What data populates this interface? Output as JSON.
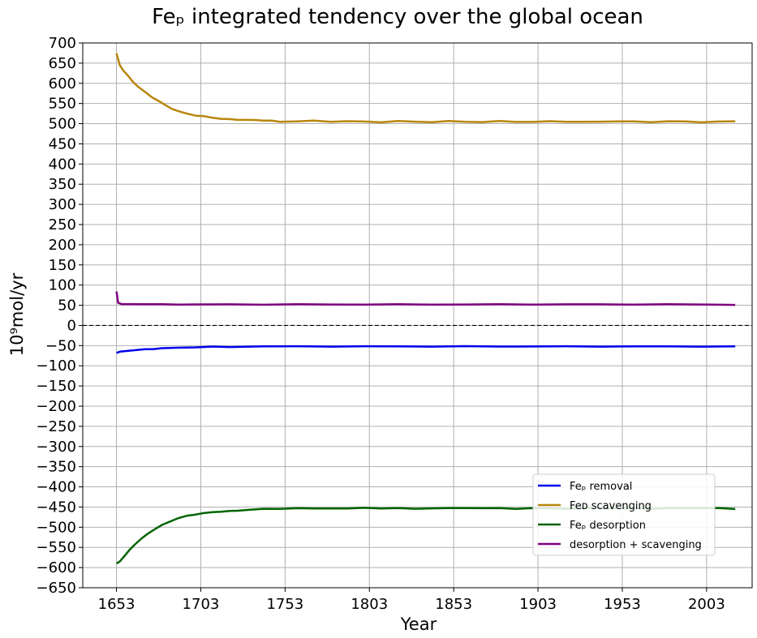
{
  "chart_data": {
    "type": "line",
    "title": "Feₚ integrated tendency over the global ocean",
    "xlabel": "Year",
    "ylabel": "10⁹mol/yr",
    "xlim": [
      1633,
      2030
    ],
    "ylim": [
      -650,
      700
    ],
    "xticks": [
      1653,
      1703,
      1753,
      1803,
      1853,
      1903,
      1953,
      2003
    ],
    "yticks": [
      700,
      650,
      600,
      550,
      500,
      450,
      400,
      350,
      300,
      250,
      200,
      150,
      100,
      50,
      0,
      -50,
      -100,
      -150,
      -200,
      -250,
      -300,
      -350,
      -400,
      -450,
      -500,
      -550,
      -600,
      -650
    ],
    "ytick_labels": [
      "700",
      "650",
      "600",
      "550",
      "500",
      "450",
      "400",
      "350",
      "300",
      "250",
      "200",
      "150",
      "100",
      "50",
      "0",
      "−50",
      "−100",
      "−150",
      "−200",
      "−250",
      "−300",
      "−350",
      "−400",
      "−450",
      "−500",
      "−550",
      "−600",
      "−650"
    ],
    "grid": true,
    "zero_line": {
      "y": 0,
      "style": "dashed",
      "color": "#000000"
    },
    "legend_position": "lower-right",
    "series": [
      {
        "name": "Feₚ removal",
        "color": "#0000ee",
        "x": [
          1653,
          1655,
          1660,
          1665,
          1670,
          1675,
          1680,
          1690,
          1700,
          1710,
          1720,
          1740,
          1760,
          1780,
          1800,
          1820,
          1840,
          1860,
          1880,
          1900,
          1920,
          1940,
          1960,
          1980,
          2000,
          2020
        ],
        "y": [
          -68,
          -65,
          -63,
          -61,
          -59,
          -58,
          -57,
          -55,
          -54,
          -53,
          -53,
          -52,
          -52,
          -52,
          -52,
          -52,
          -52,
          -52,
          -52,
          -52,
          -52,
          -52,
          -52,
          -52,
          -52,
          -52
        ]
      },
      {
        "name": "Feᴅ scavenging",
        "color": "#b8860b",
        "x": [
          1653,
          1655,
          1657,
          1660,
          1663,
          1666,
          1670,
          1674,
          1678,
          1682,
          1686,
          1690,
          1695,
          1700,
          1705,
          1710,
          1715,
          1720,
          1725,
          1730,
          1735,
          1740,
          1745,
          1750,
          1760,
          1770,
          1780,
          1790,
          1800,
          1810,
          1820,
          1830,
          1840,
          1850,
          1860,
          1870,
          1880,
          1890,
          1900,
          1910,
          1920,
          1930,
          1940,
          1950,
          1960,
          1970,
          1980,
          1990,
          2000,
          2010,
          2020
        ],
        "y": [
          674,
          645,
          632,
          618,
          603,
          591,
          578,
          566,
          556,
          546,
          537,
          530,
          525,
          520,
          518,
          515,
          512,
          511,
          510,
          509,
          509,
          508,
          507,
          505,
          506,
          507,
          505,
          506,
          505,
          504,
          506,
          505,
          504,
          506,
          505,
          504,
          506,
          505,
          504,
          506,
          505,
          504,
          505,
          506,
          505,
          504,
          506,
          505,
          504,
          505,
          506
        ]
      },
      {
        "name": "Feₚ desorption",
        "color": "#006400",
        "x": [
          1653,
          1655,
          1658,
          1661,
          1664,
          1668,
          1672,
          1676,
          1680,
          1685,
          1690,
          1695,
          1700,
          1705,
          1710,
          1715,
          1720,
          1725,
          1730,
          1740,
          1750,
          1760,
          1770,
          1780,
          1790,
          1800,
          1810,
          1820,
          1830,
          1840,
          1850,
          1860,
          1870,
          1880,
          1890,
          1900,
          1910,
          1920,
          1930,
          1940,
          1950,
          1960,
          1970,
          1980,
          1990,
          2000,
          2010,
          2020
        ],
        "y": [
          -590,
          -585,
          -570,
          -555,
          -542,
          -528,
          -515,
          -504,
          -495,
          -485,
          -477,
          -472,
          -468,
          -465,
          -463,
          -461,
          -460,
          -459,
          -457,
          -455,
          -454,
          -453,
          -454,
          -453,
          -454,
          -452,
          -453,
          -453,
          -454,
          -453,
          -453,
          -452,
          -453,
          -453,
          -454,
          -453,
          -453,
          -454,
          -453,
          -452,
          -453,
          -453,
          -454,
          -453,
          -453,
          -452,
          -453,
          -455
        ]
      },
      {
        "name": "desorption + scavenging",
        "color": "#800080",
        "x": [
          1653,
          1654,
          1656,
          1660,
          1670,
          1680,
          1690,
          1700,
          1720,
          1740,
          1760,
          1780,
          1800,
          1820,
          1840,
          1860,
          1880,
          1900,
          1920,
          1940,
          1960,
          1980,
          2000,
          2020
        ],
        "y": [
          84,
          56,
          53,
          53,
          53,
          52,
          52,
          52,
          52,
          52,
          52,
          52,
          52,
          52,
          52,
          52,
          52,
          52,
          52,
          52,
          52,
          52,
          52,
          51
        ]
      }
    ]
  }
}
